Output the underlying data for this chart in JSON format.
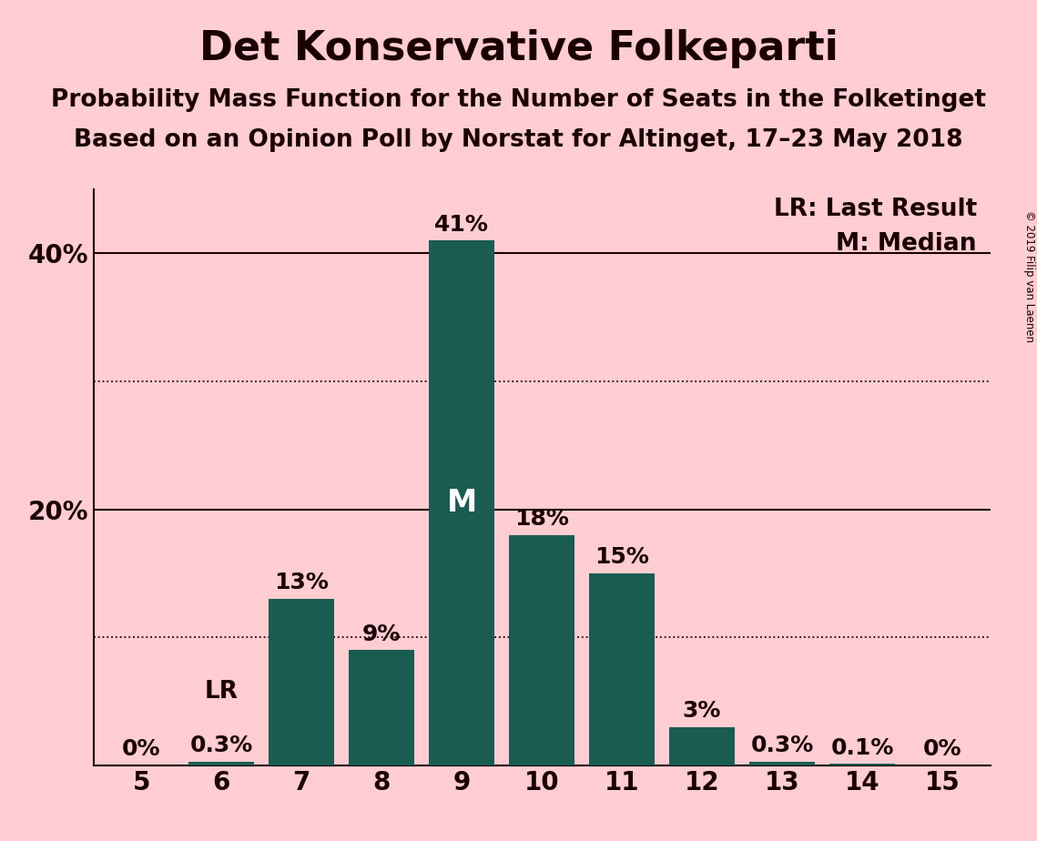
{
  "title": "Det Konservative Folkeparti",
  "subtitle1": "Probability Mass Function for the Number of Seats in the Folketinget",
  "subtitle2": "Based on an Opinion Poll by Norstat for Altinget, 17–23 May 2018",
  "copyright": "© 2019 Filip van Laenen",
  "categories": [
    5,
    6,
    7,
    8,
    9,
    10,
    11,
    12,
    13,
    14,
    15
  ],
  "values": [
    0.0,
    0.3,
    13.0,
    9.0,
    41.0,
    18.0,
    15.0,
    3.0,
    0.3,
    0.1,
    0.0
  ],
  "bar_color": "#1a5c52",
  "background_color": "#ffcdd2",
  "label_color": "#1a0000",
  "bar_labels": [
    "0%",
    "0.3%",
    "13%",
    "9%",
    "41%",
    "18%",
    "15%",
    "3%",
    "0.3%",
    "0.1%",
    "0%"
  ],
  "lr_seat": 6,
  "lr_label": "LR",
  "median_seat": 9,
  "median_label": "M",
  "legend_lr": "LR: Last Result",
  "legend_m": "M: Median",
  "ylim": [
    0,
    45
  ],
  "dotted_grid_lines": [
    10,
    30
  ],
  "solid_grid_lines": [
    20,
    40
  ],
  "title_fontsize": 32,
  "subtitle_fontsize": 19,
  "bar_label_fontsize": 18,
  "axis_tick_fontsize": 20,
  "legend_fontsize": 19,
  "median_fontsize": 24
}
